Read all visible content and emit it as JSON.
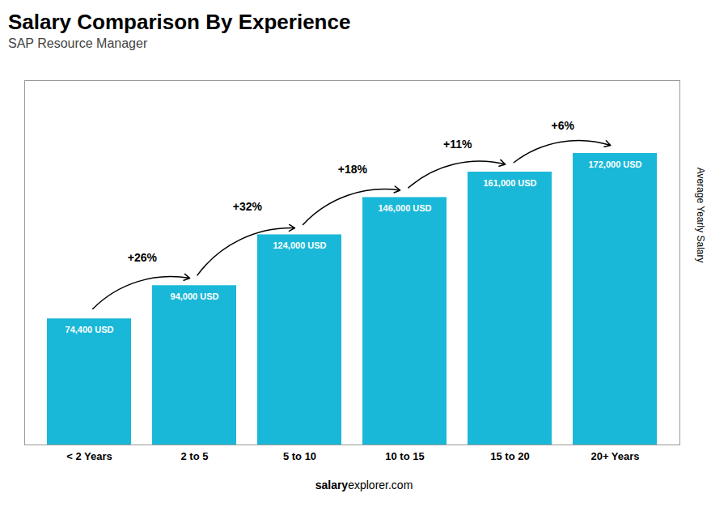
{
  "chart_data": {
    "type": "bar",
    "title": "Salary Comparison By Experience",
    "subtitle": "SAP Resource Manager",
    "categories": [
      "< 2 Years",
      "2 to 5",
      "5 to 10",
      "10 to 15",
      "15 to 20",
      "20+ Years"
    ],
    "values": [
      74400,
      94000,
      124000,
      146000,
      161000,
      172000
    ],
    "value_labels": [
      "74,400 USD",
      "94,000 USD",
      "124,000 USD",
      "146,000 USD",
      "161,000 USD",
      "172,000 USD"
    ],
    "data_labels": true,
    "color": "#1ab8d8",
    "ylim": [
      0,
      215000
    ],
    "ylabel": "Average Yearly Salary",
    "tick_labels": "x",
    "grid": false,
    "annotations": [
      {
        "text": "+26%",
        "from": "< 2 Years",
        "to": "2 to 5"
      },
      {
        "text": "+32%",
        "from": "2 to 5",
        "to": "5 to 10"
      },
      {
        "text": "+18%",
        "from": "5 to 10",
        "to": "10 to 15"
      },
      {
        "text": "+11%",
        "from": "10 to 15",
        "to": "15 to 20"
      },
      {
        "text": "+6%",
        "from": "15 to 20",
        "to": "20+ Years"
      }
    ],
    "caption": [
      "salary",
      "explorer.com"
    ]
  }
}
